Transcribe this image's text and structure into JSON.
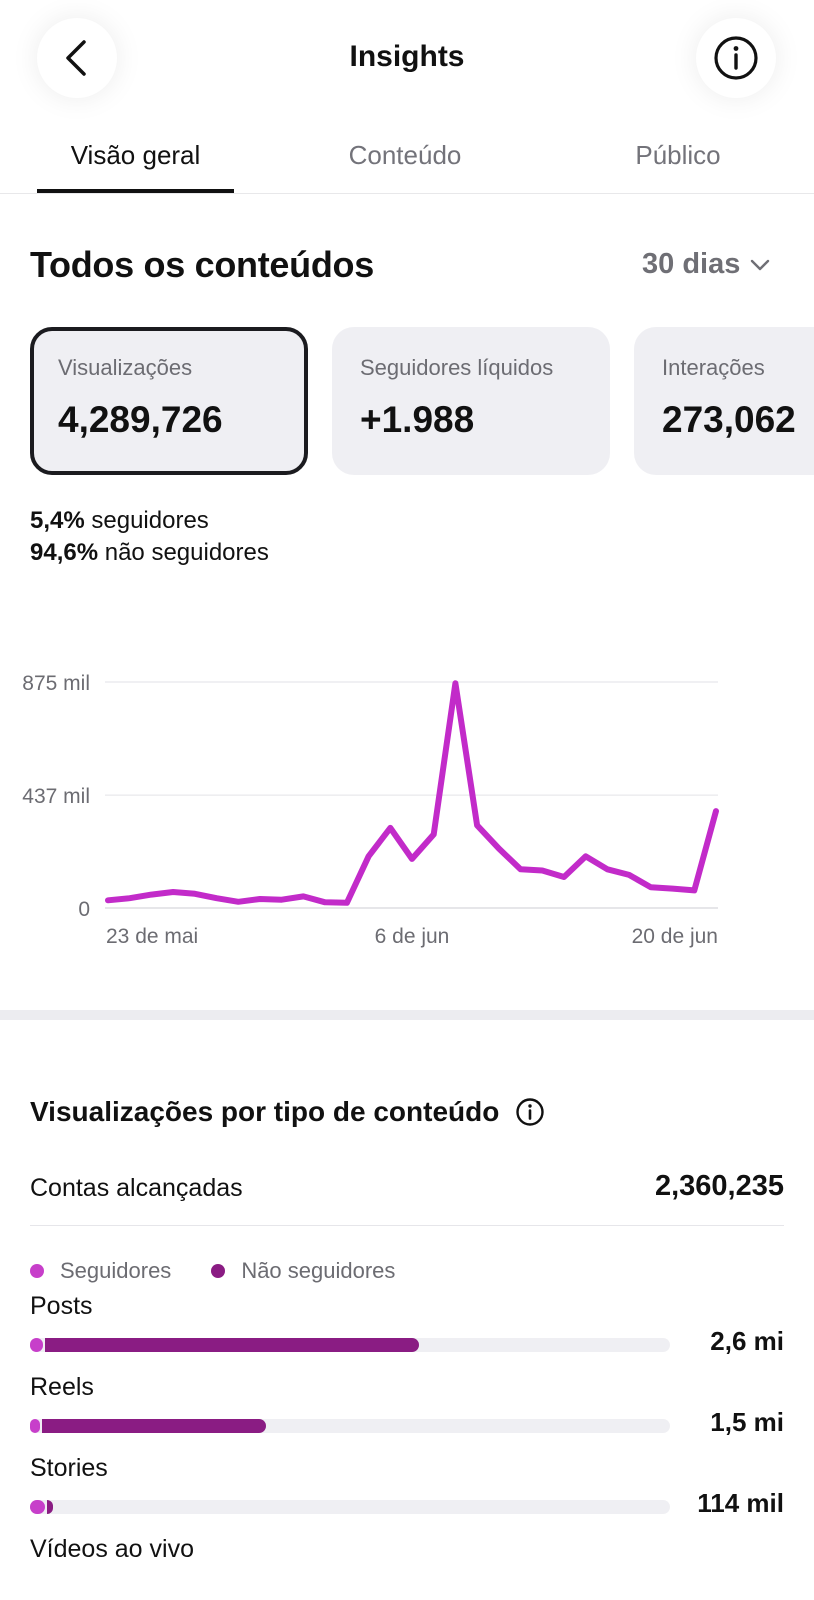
{
  "header": {
    "title": "Insights",
    "back_icon": "chevron-left-icon",
    "info_icon": "info-circle-icon"
  },
  "tabs": [
    {
      "label": "Visão geral",
      "active": true
    },
    {
      "label": "Conteúdo",
      "active": false
    },
    {
      "label": "Público",
      "active": false
    }
  ],
  "overview": {
    "title": "Todos os conteúdos",
    "period": "30 dias",
    "cards": [
      {
        "label": "Visualizações",
        "value": "4,289,726",
        "selected": true
      },
      {
        "label": "Seguidores líquidos",
        "value": "+1.988",
        "selected": false
      },
      {
        "label": "Interações",
        "value": "273,062",
        "selected": false
      }
    ],
    "split": [
      {
        "pct": "5,4%",
        "text": "seguidores"
      },
      {
        "pct": "94,6%",
        "text": "não seguidores"
      }
    ]
  },
  "chart_data": {
    "type": "line",
    "y_tick_labels": [
      "875 mil",
      "437 mil",
      "0"
    ],
    "y_ticks": [
      875000,
      437000,
      0
    ],
    "ylim": [
      0,
      875000
    ],
    "x_tick_labels": [
      "23 de mai",
      "6 de jun",
      "20 de jun"
    ],
    "x_tick_indices": [
      0,
      14,
      28
    ],
    "line_color": "#c22bc9",
    "grid": true,
    "series": [
      {
        "values": [
          30000,
          38000,
          52000,
          62000,
          55000,
          38000,
          24000,
          35000,
          32000,
          45000,
          22000,
          20000,
          200000,
          310000,
          190000,
          285000,
          870000,
          320000,
          230000,
          150000,
          145000,
          120000,
          200000,
          150000,
          128000,
          80000,
          75000,
          68000,
          375000
        ]
      }
    ]
  },
  "breakdown": {
    "title": "Visualizações por tipo de conteúdo",
    "info_icon": "info-circle-icon",
    "reach_label": "Contas alcançadas",
    "reach_value": "2,360,235",
    "legend": [
      {
        "label": "Seguidores",
        "color": "#c73fca"
      },
      {
        "label": "Não seguidores",
        "color": "#8a1c83"
      }
    ],
    "rows": [
      {
        "label": "Posts",
        "value": "2,6 mi",
        "followers_share": 0.02,
        "nonfollowers_share": 0.585
      },
      {
        "label": "Reels",
        "value": "1,5 mi",
        "followers_share": 0.012,
        "nonfollowers_share": 0.35
      },
      {
        "label": "Stories",
        "value": "114 mil",
        "followers_share": 0.023,
        "nonfollowers_share": 0.01
      },
      {
        "label": "Vídeos ao vivo",
        "value": ""
      }
    ]
  }
}
